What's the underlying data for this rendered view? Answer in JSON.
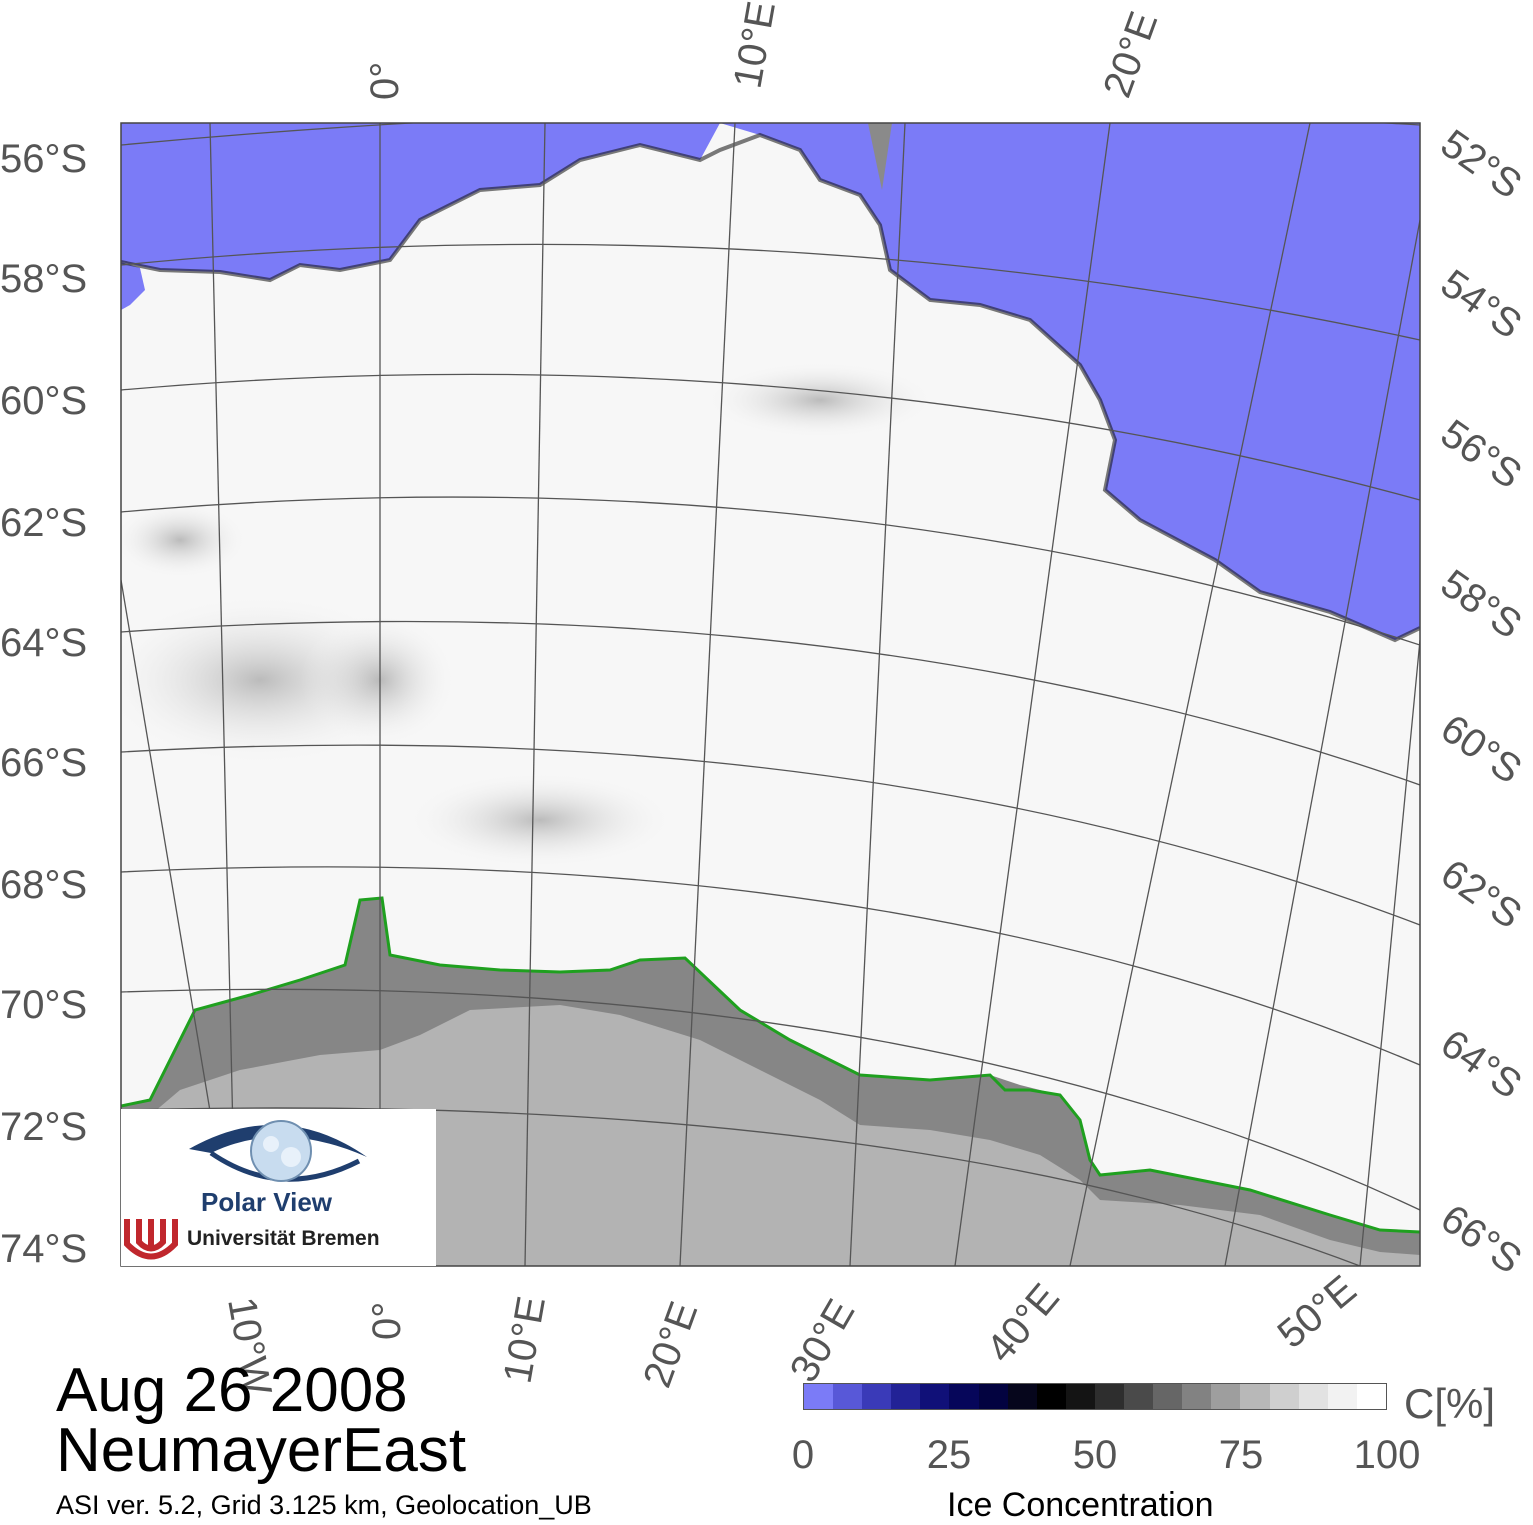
{
  "map": {
    "date": "Aug 26 2008",
    "region": "NeumayerEast",
    "info": "ASI ver. 5.2,  Grid 3.125 km, Geolocation_UB",
    "top_lon_labels": [
      "0°",
      "10°E",
      "20°E"
    ],
    "bottom_lon_labels": [
      "10°W",
      "0°",
      "10°E",
      "20°E",
      "30°E",
      "40°E",
      "50°E"
    ],
    "left_lat_labels": [
      "56°S",
      "58°S",
      "60°S",
      "62°S",
      "64°S",
      "66°S",
      "68°S",
      "70°S",
      "72°S",
      "74°S"
    ],
    "right_lat_labels": [
      "52°S",
      "54°S",
      "56°S",
      "58°S",
      "60°S",
      "62°S",
      "64°S",
      "66°S"
    ],
    "colors": {
      "open_water": "#7b7bf7",
      "land": "#b3b3b3",
      "ice_shelf": "#868686",
      "coastline": "#1fa01f",
      "graticule": "#555555"
    }
  },
  "colorbar": {
    "title": "Ice Concentration",
    "unit": "C[%]",
    "ticks": [
      "0",
      "25",
      "50",
      "75",
      "100"
    ],
    "range": [
      0,
      100
    ]
  },
  "logo": {
    "name": "Polar View",
    "institution": "Universität Bremen"
  }
}
